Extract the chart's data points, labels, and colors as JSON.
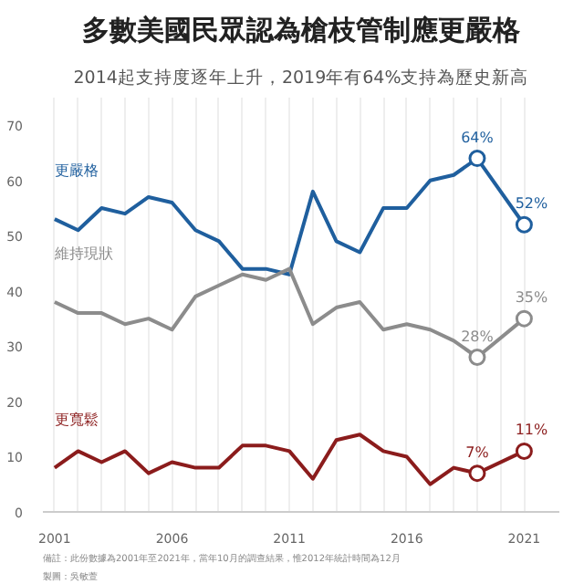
{
  "chart_data": {
    "type": "line",
    "title": "多數美國民眾認為槍枝管制應更嚴格",
    "subtitle": "2014起支持度逐年上升，2019年有64%支持為歷史新高",
    "xlim": [
      2000.5,
      2022.5
    ],
    "ylim": [
      0,
      75
    ],
    "xticks": [
      2001,
      {
        "value": 2002,
        "label": null
      },
      {
        "value": 2003,
        "label": null
      },
      {
        "value": 2004,
        "label": null
      },
      {
        "value": 2005,
        "label": null
      },
      2006,
      {
        "value": 2007,
        "label": null
      },
      {
        "value": 2008,
        "label": null
      },
      {
        "value": 2009,
        "label": null
      },
      {
        "value": 2010,
        "label": null
      },
      2011,
      {
        "value": 2012,
        "label": null
      },
      {
        "value": 2013,
        "label": null
      },
      {
        "value": 2014,
        "label": null
      },
      {
        "value": 2015,
        "label": null
      },
      2016,
      {
        "value": 2017,
        "label": null
      },
      {
        "value": 2018,
        "label": null
      },
      {
        "value": 2019,
        "label": null
      },
      {
        "value": 2020,
        "label": null
      },
      2021
    ],
    "yticks": [
      0,
      10,
      20,
      30,
      40,
      50,
      60,
      70
    ],
    "grid": "x",
    "line_style": "solid",
    "series": [
      {
        "name": "更嚴格",
        "color": "#1f5f9e",
        "x": [
          2001,
          2002,
          2003,
          2004,
          2005,
          2006,
          2007,
          2008,
          2009,
          2010,
          2011,
          2012,
          2013,
          2014,
          2015,
          2016,
          2017,
          2018,
          2019,
          2021
        ],
        "values": [
          53,
          51,
          55,
          54,
          57,
          56,
          51,
          49,
          44,
          44,
          43,
          58,
          49,
          47,
          55,
          55,
          60,
          61,
          64,
          52
        ],
        "value_labels": [
          null,
          null,
          null,
          null,
          null,
          null,
          null,
          null,
          null,
          null,
          null,
          null,
          null,
          null,
          null,
          null,
          null,
          null,
          "64%",
          "52%"
        ]
      },
      {
        "name": "維持現狀",
        "color": "#8c8c8c",
        "x": [
          2001,
          2002,
          2003,
          2004,
          2005,
          2006,
          2007,
          2008,
          2009,
          2010,
          2011,
          2012,
          2013,
          2014,
          2015,
          2016,
          2017,
          2018,
          2019,
          2021
        ],
        "values": [
          38,
          36,
          36,
          34,
          35,
          33,
          39,
          41,
          43,
          42,
          44,
          34,
          37,
          38,
          33,
          34,
          33,
          31,
          28,
          35
        ],
        "value_labels": [
          null,
          null,
          null,
          null,
          null,
          null,
          null,
          null,
          null,
          null,
          null,
          null,
          null,
          null,
          null,
          null,
          null,
          null,
          "28%",
          "35%"
        ]
      },
      {
        "name": "更寬鬆",
        "color": "#8b1c1c",
        "x": [
          2001,
          2002,
          2003,
          2004,
          2005,
          2006,
          2007,
          2008,
          2009,
          2010,
          2011,
          2012,
          2013,
          2014,
          2015,
          2016,
          2017,
          2018,
          2019,
          2021
        ],
        "values": [
          8,
          11,
          9,
          11,
          7,
          9,
          8,
          8,
          12,
          12,
          11,
          6,
          13,
          14,
          11,
          10,
          5,
          8,
          7,
          11
        ],
        "value_labels": [
          null,
          null,
          null,
          null,
          null,
          null,
          null,
          null,
          null,
          null,
          null,
          null,
          null,
          null,
          null,
          null,
          null,
          null,
          "7%",
          "11%"
        ]
      }
    ],
    "annotations": [
      "備註：此份數據為2001年至2021年，當年10月的調查結果，惟2012年統計時間為12月",
      "製圖：吳敏萱"
    ]
  }
}
